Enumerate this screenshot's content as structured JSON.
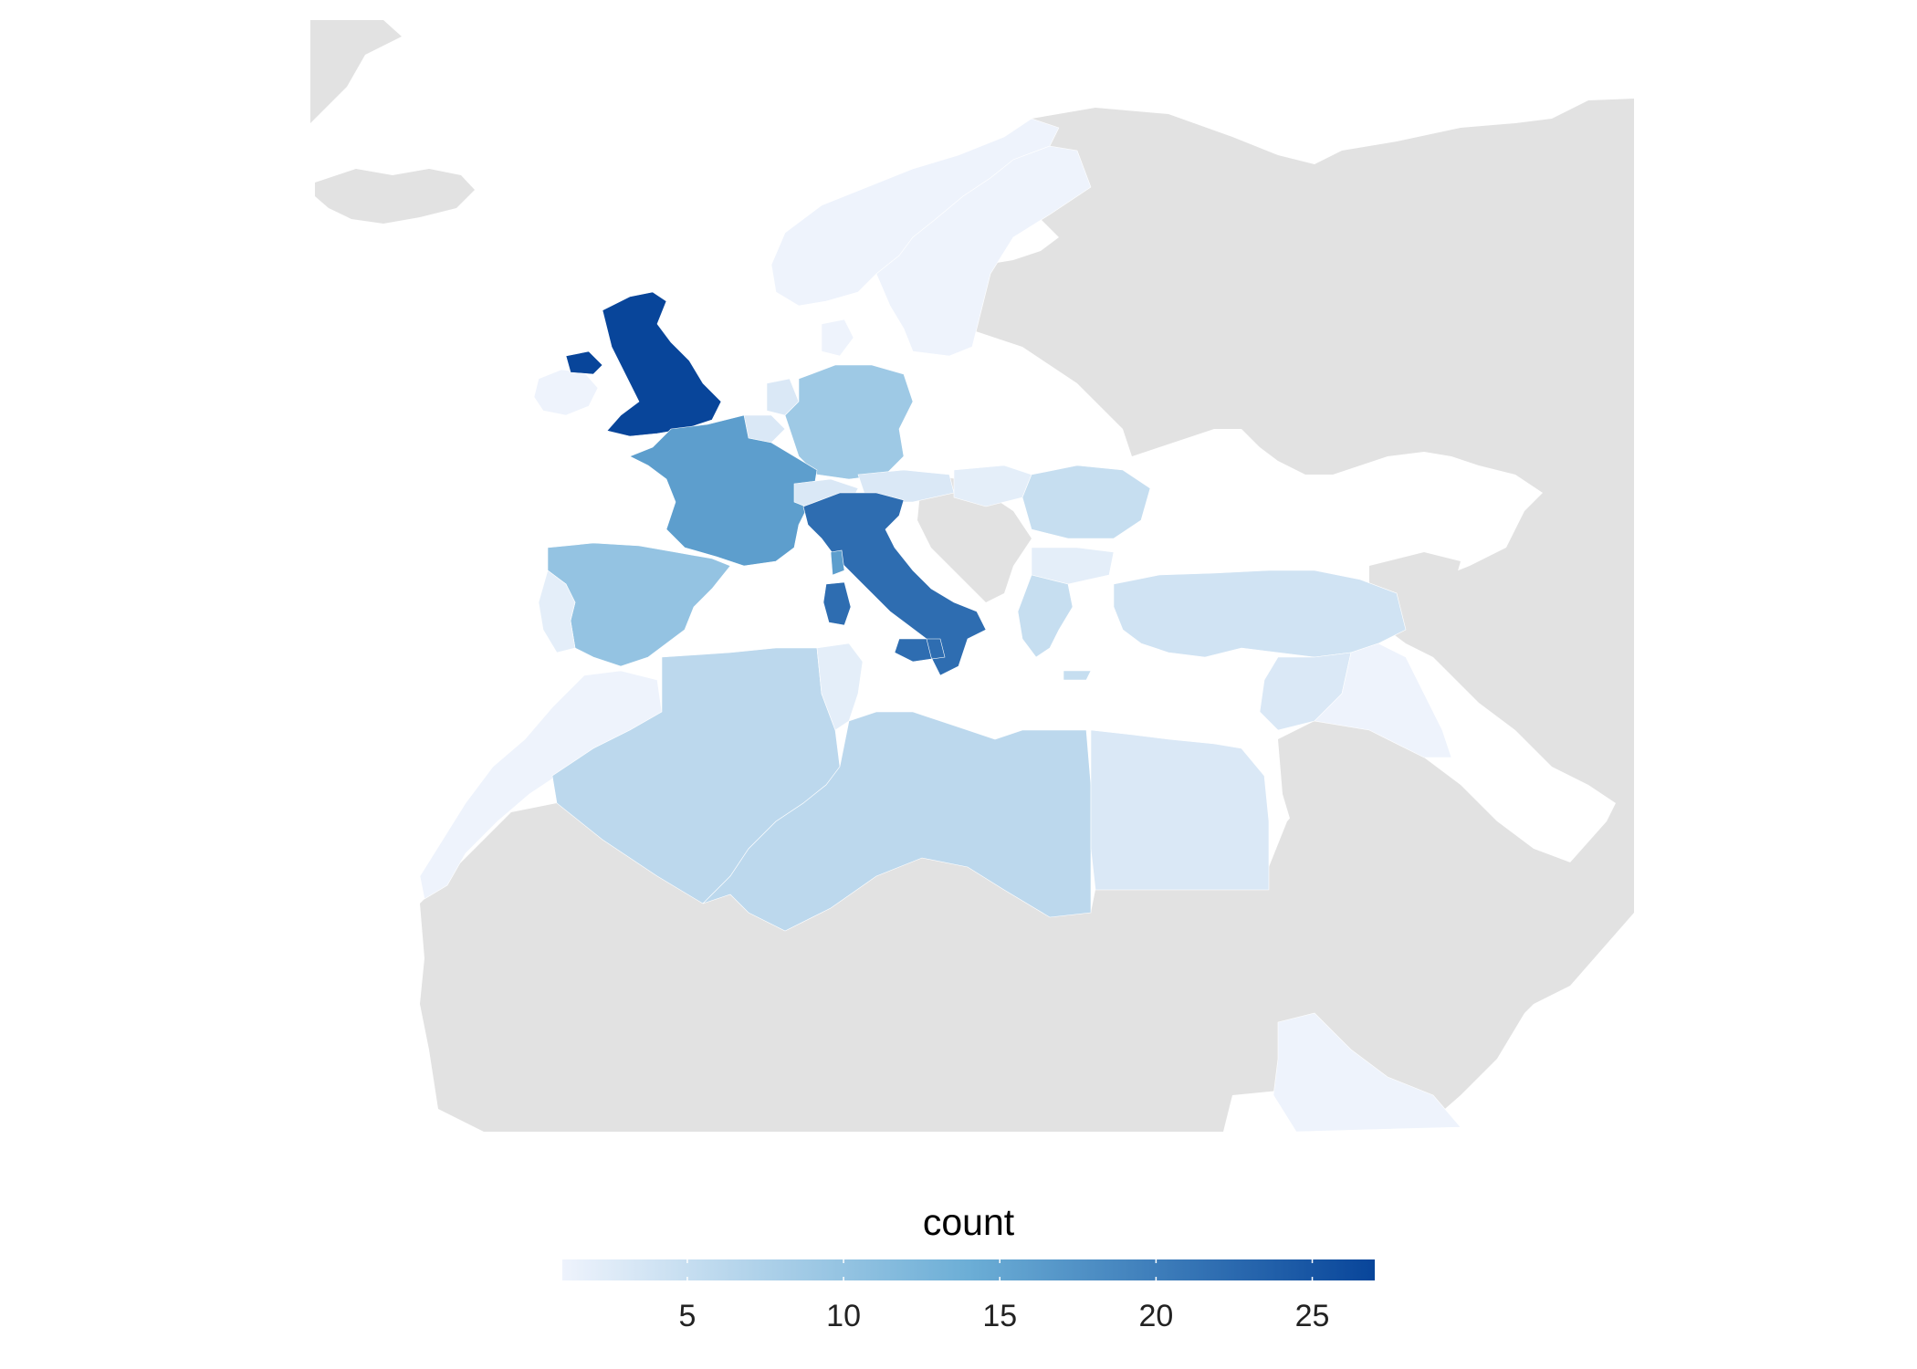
{
  "legend": {
    "title": "count",
    "min": 1,
    "max": 27,
    "ticks": [
      5,
      10,
      15,
      20,
      25
    ],
    "low_color": "#eef3fc",
    "high_color": "#08459a"
  },
  "colors": {
    "no_data_land": "#e2e2e2",
    "water": "#ffffff"
  },
  "region_counts": {
    "United Kingdom": 27,
    "Italy": 22,
    "France": 16,
    "Spain": 10,
    "Germany": 9,
    "Libya": 6,
    "Algeria": 6,
    "Romania": 5,
    "Turkey": 4,
    "Greece": 5,
    "Switzerland": 3,
    "Austria": 3,
    "Egypt": 3,
    "Netherlands": 3,
    "Belgium": 3,
    "Syria": 3,
    "Norway": 1,
    "Sweden": 1,
    "Morocco": 1,
    "Iraq": 1,
    "Ireland": 1,
    "Denmark": 1,
    "Portugal": 2,
    "Tunisia": 2,
    "Ethiopia": 1,
    "Hungary": 2,
    "Bulgaria": 2
  }
}
